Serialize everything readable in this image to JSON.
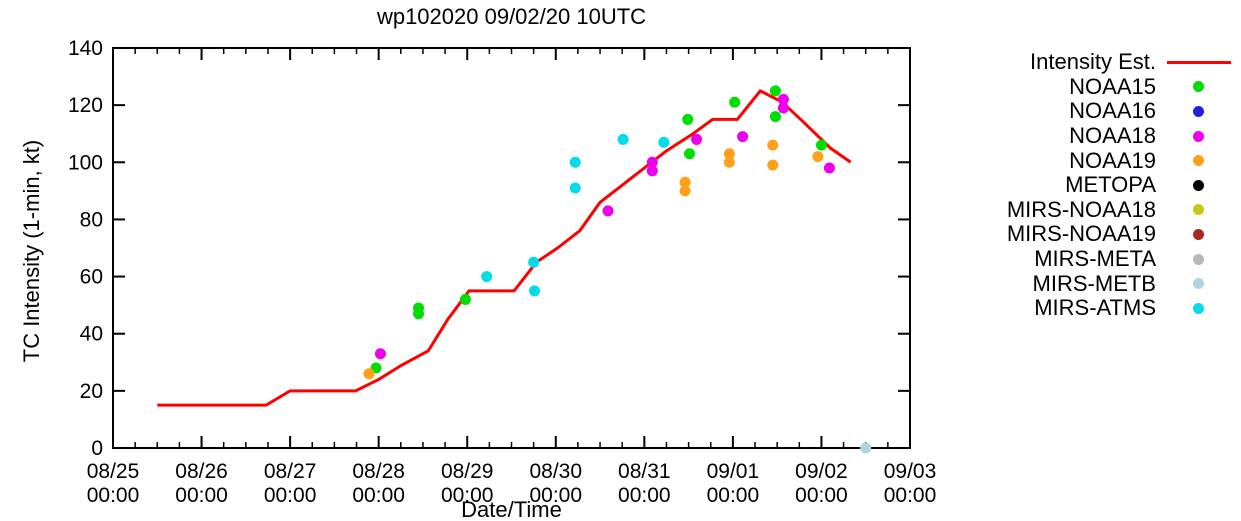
{
  "title": "wp102020 09/02/20 10UTC",
  "chart_data": {
    "type": "line",
    "title": "wp102020 09/02/20 10UTC",
    "xlabel": "Date/Time",
    "ylabel": "TC Intensity (1-min, kt)",
    "ylim": [
      0,
      140
    ],
    "ytick_step": 20,
    "x_range_days": [
      0,
      9
    ],
    "x_minor_ticks_per_day": 4,
    "x_axis": {
      "date_labels": [
        "08/25",
        "08/26",
        "08/27",
        "08/28",
        "08/29",
        "08/30",
        "08/31",
        "09/01",
        "09/02",
        "09/03"
      ],
      "time_label": "00:00"
    },
    "grid": "off",
    "legend_position": "right-outside",
    "frame_color": "#000000",
    "series": [
      {
        "name": "Intensity Est.",
        "type": "line",
        "color": "#ff0000",
        "points": [
          [
            0.5,
            15
          ],
          [
            1.73,
            15
          ],
          [
            2.0,
            20
          ],
          [
            2.74,
            20
          ],
          [
            3.0,
            24
          ],
          [
            3.26,
            29
          ],
          [
            3.56,
            34
          ],
          [
            3.78,
            45
          ],
          [
            4.02,
            55
          ],
          [
            4.53,
            55
          ],
          [
            4.78,
            65
          ],
          [
            5.02,
            70
          ],
          [
            5.27,
            76
          ],
          [
            5.5,
            86
          ],
          [
            5.75,
            92
          ],
          [
            6.0,
            98
          ],
          [
            6.25,
            104
          ],
          [
            6.55,
            110
          ],
          [
            6.77,
            115
          ],
          [
            7.05,
            115
          ],
          [
            7.31,
            125
          ],
          [
            7.56,
            121
          ],
          [
            7.8,
            114
          ],
          [
            8.1,
            105
          ],
          [
            8.33,
            100
          ]
        ]
      },
      {
        "name": "NOAA15",
        "type": "scatter",
        "color": "#00dd00",
        "points": [
          [
            2.97,
            28
          ],
          [
            3.45,
            49
          ],
          [
            3.45,
            47
          ],
          [
            3.98,
            52
          ],
          [
            6.49,
            115
          ],
          [
            6.51,
            103
          ],
          [
            7.02,
            121
          ],
          [
            7.48,
            125
          ],
          [
            7.48,
            116
          ],
          [
            8.0,
            106
          ]
        ]
      },
      {
        "name": "NOAA16",
        "type": "scatter",
        "color": "#2020e0",
        "points": []
      },
      {
        "name": "NOAA18",
        "type": "scatter",
        "color": "#ee00ee",
        "points": [
          [
            3.02,
            33
          ],
          [
            5.59,
            83
          ],
          [
            6.09,
            100
          ],
          [
            6.09,
            97
          ],
          [
            6.59,
            108
          ],
          [
            7.11,
            109
          ],
          [
            7.57,
            122
          ],
          [
            7.57,
            119
          ],
          [
            8.09,
            98
          ]
        ]
      },
      {
        "name": "NOAA19",
        "type": "scatter",
        "color": "#ffa019",
        "points": [
          [
            2.89,
            26
          ],
          [
            6.46,
            93
          ],
          [
            6.46,
            90
          ],
          [
            6.96,
            103
          ],
          [
            6.96,
            100
          ],
          [
            7.45,
            106
          ],
          [
            7.45,
            99
          ],
          [
            7.96,
            102
          ]
        ]
      },
      {
        "name": "METOPA",
        "type": "scatter",
        "color": "#000000",
        "points": []
      },
      {
        "name": "MIRS-NOAA18",
        "type": "scatter",
        "color": "#c8c814",
        "points": []
      },
      {
        "name": "MIRS-NOAA19",
        "type": "scatter",
        "color": "#a62820",
        "points": []
      },
      {
        "name": "MIRS-META",
        "type": "scatter",
        "color": "#b8b8b8",
        "points": []
      },
      {
        "name": "MIRS-METB",
        "type": "scatter",
        "color": "#aed4e2",
        "points": [
          [
            8.5,
            0
          ]
        ]
      },
      {
        "name": "MIRS-ATMS",
        "type": "scatter",
        "color": "#00dce8",
        "points": [
          [
            4.22,
            60
          ],
          [
            4.75,
            65
          ],
          [
            4.76,
            55
          ],
          [
            5.22,
            100
          ],
          [
            5.22,
            91
          ],
          [
            5.76,
            108
          ],
          [
            6.22,
            107
          ]
        ]
      }
    ]
  }
}
